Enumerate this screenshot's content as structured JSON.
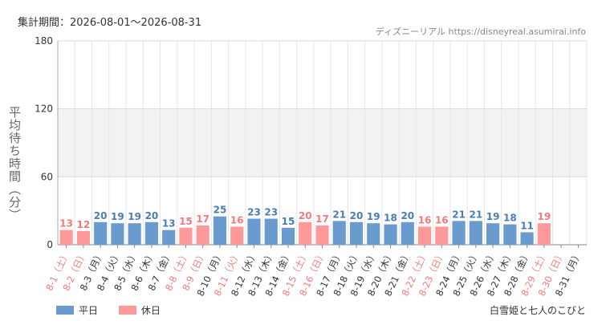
{
  "header": {
    "period": "集計期間：2026-08-01～2026-08-31",
    "site": "ディズニーリアル https://disneyreal.asumirai.info"
  },
  "attraction": "白雪姫と七人のこびと",
  "legend": [
    {
      "label": "平日",
      "color": "#6a9bcf"
    },
    {
      "label": "休日",
      "color": "#ff9999"
    }
  ],
  "chart_data": {
    "type": "bar",
    "ylabel": "平均待ち時間（分）",
    "ylim": [
      0,
      180
    ],
    "yticks": [
      0,
      60,
      120,
      180
    ],
    "grid": true,
    "legend_position": "bottom-left",
    "colors": {
      "weekday": "#6a9bcf",
      "holiday": "#ff9999",
      "weekday_label": "#4a7db5",
      "holiday_label": "#f47a7a"
    },
    "categories": [
      "8-1（土）",
      "8-2（日）",
      "8-3（月）",
      "8-4（火）",
      "8-5（水）",
      "8-6（木）",
      "8-7（金）",
      "8-8（土）",
      "8-9（日）",
      "8-10（月）",
      "8-11（火）",
      "8-12（水）",
      "8-13（木）",
      "8-14（金）",
      "8-15（土）",
      "8-16（日）",
      "8-17（月）",
      "8-18（火）",
      "8-19（水）",
      "8-20（木）",
      "8-21（金）",
      "8-22（土）",
      "8-23（日）",
      "8-24（月）",
      "8-25（火）",
      "8-26（水）",
      "8-27（木）",
      "8-28（金）",
      "8-29（土）",
      "8-30（日）",
      "8-31（月）"
    ],
    "values": [
      13,
      12,
      20,
      19,
      19,
      20,
      13,
      15,
      17,
      25,
      16,
      23,
      23,
      15,
      20,
      17,
      21,
      20,
      19,
      18,
      20,
      16,
      16,
      21,
      21,
      19,
      18,
      11,
      19,
      null,
      null
    ],
    "holiday": [
      true,
      true,
      false,
      false,
      false,
      false,
      false,
      true,
      true,
      false,
      true,
      false,
      false,
      false,
      true,
      true,
      false,
      false,
      false,
      false,
      false,
      true,
      true,
      false,
      false,
      false,
      false,
      false,
      true,
      true,
      false
    ]
  }
}
